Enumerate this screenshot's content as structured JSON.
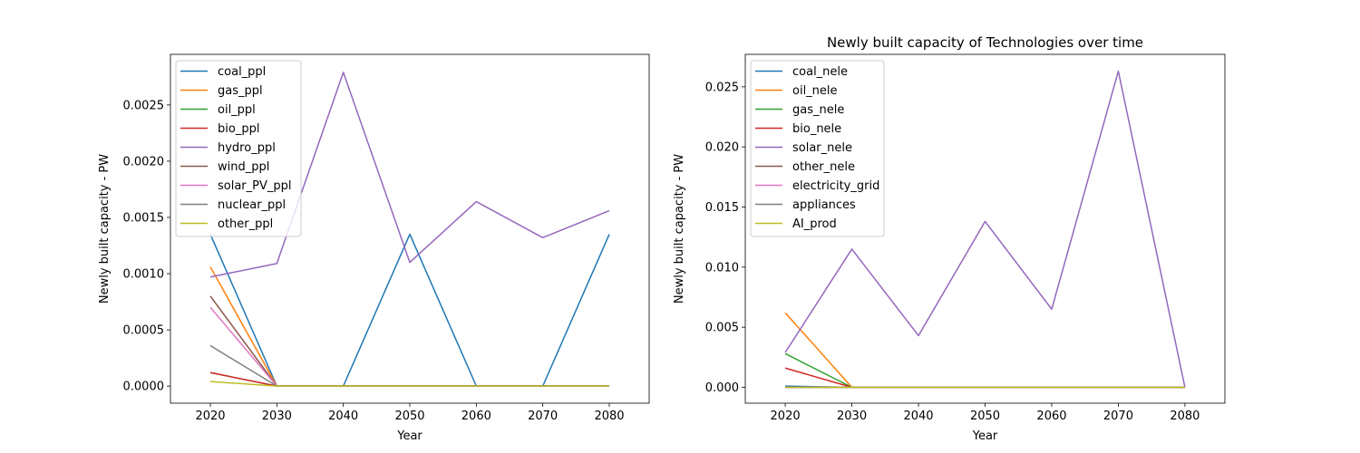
{
  "chart_data": [
    {
      "type": "line",
      "title": "",
      "xlabel": "Year",
      "ylabel": "Newly built capacity - PW",
      "x": [
        2020,
        2030,
        2040,
        2050,
        2060,
        2070,
        2080
      ],
      "xlim": [
        2014,
        2086
      ],
      "ylim": [
        -0.000152,
        0.00295
      ],
      "xticks": [
        2020,
        2030,
        2040,
        2050,
        2060,
        2070,
        2080
      ],
      "yticks": [
        0,
        0.0005,
        0.001,
        0.0015,
        0.002,
        0.0025
      ],
      "ytick_labels": [
        "0.0000",
        "0.0005",
        "0.0010",
        "0.0015",
        "0.0020",
        "0.0025"
      ],
      "grid": false,
      "legend_position": "upper-left",
      "series": [
        {
          "name": "coal_ppl",
          "color": "#1f77b4",
          "values": [
            0.00135,
            0,
            0,
            0.00135,
            0,
            0,
            0.00135
          ]
        },
        {
          "name": "gas_ppl",
          "color": "#ff7f0e",
          "values": [
            0.00106,
            0,
            0,
            0,
            0,
            0,
            0
          ]
        },
        {
          "name": "oil_ppl",
          "color": "#2ca02c",
          "values": [
            0.00012,
            0,
            0,
            0,
            0,
            0,
            0
          ]
        },
        {
          "name": "bio_ppl",
          "color": "#d62728",
          "values": [
            0.00012,
            0,
            0,
            0,
            0,
            0,
            0
          ]
        },
        {
          "name": "hydro_ppl",
          "color": "#9467bd",
          "values": [
            0.00097,
            0.00109,
            0.00279,
            0.0011,
            0.00164,
            0.00132,
            0.00156
          ]
        },
        {
          "name": "wind_ppl",
          "color": "#8c564b",
          "values": [
            0.0008,
            0,
            0,
            0,
            0,
            0,
            0
          ]
        },
        {
          "name": "solar_PV_ppl",
          "color": "#e377c2",
          "values": [
            0.0007,
            0,
            0,
            0,
            0,
            0,
            0
          ]
        },
        {
          "name": "nuclear_ppl",
          "color": "#7f7f7f",
          "values": [
            0.00036,
            0,
            0,
            0,
            0,
            0,
            0
          ]
        },
        {
          "name": "other_ppl",
          "color": "#bcbd22",
          "values": [
            4e-05,
            0,
            0,
            0,
            0,
            0,
            0
          ]
        }
      ]
    },
    {
      "type": "line",
      "title": "Newly built capacity of Technologies over time",
      "xlabel": "Year",
      "ylabel": "Newly built capacity - PW",
      "x": [
        2020,
        2030,
        2040,
        2050,
        2060,
        2070,
        2080
      ],
      "xlim": [
        2014,
        2086
      ],
      "ylim": [
        -0.00132,
        0.0277
      ],
      "xticks": [
        2020,
        2030,
        2040,
        2050,
        2060,
        2070,
        2080
      ],
      "yticks": [
        0,
        0.005,
        0.01,
        0.015,
        0.02,
        0.025
      ],
      "ytick_labels": [
        "0.000",
        "0.005",
        "0.010",
        "0.015",
        "0.020",
        "0.025"
      ],
      "grid": false,
      "legend_position": "upper-left",
      "series": [
        {
          "name": "coal_nele",
          "color": "#1f77b4",
          "values": [
            0.0001,
            0,
            0,
            0,
            0,
            0,
            0
          ]
        },
        {
          "name": "oil_nele",
          "color": "#ff7f0e",
          "values": [
            0.0062,
            0,
            0,
            0,
            0,
            0,
            0
          ]
        },
        {
          "name": "gas_nele",
          "color": "#2ca02c",
          "values": [
            0.0028,
            0,
            0,
            0,
            0,
            0,
            0
          ]
        },
        {
          "name": "bio_nele",
          "color": "#d62728",
          "values": [
            0.0016,
            0,
            0,
            0,
            0,
            0,
            0
          ]
        },
        {
          "name": "solar_nele",
          "color": "#9467bd",
          "values": [
            0.0029,
            0.0115,
            0.0043,
            0.0138,
            0.0065,
            0.0263,
            0
          ]
        },
        {
          "name": "other_nele",
          "color": "#8c564b",
          "values": [
            0,
            0,
            0,
            0,
            0,
            0,
            0
          ]
        },
        {
          "name": "electricity_grid",
          "color": "#e377c2",
          "values": [
            0,
            0,
            0,
            0,
            0,
            0,
            0
          ]
        },
        {
          "name": "appliances",
          "color": "#7f7f7f",
          "values": [
            0,
            0,
            0,
            0,
            0,
            0,
            0
          ]
        },
        {
          "name": "AI_prod",
          "color": "#bcbd22",
          "values": [
            0,
            0,
            0,
            0,
            0,
            0,
            0
          ]
        }
      ]
    }
  ]
}
